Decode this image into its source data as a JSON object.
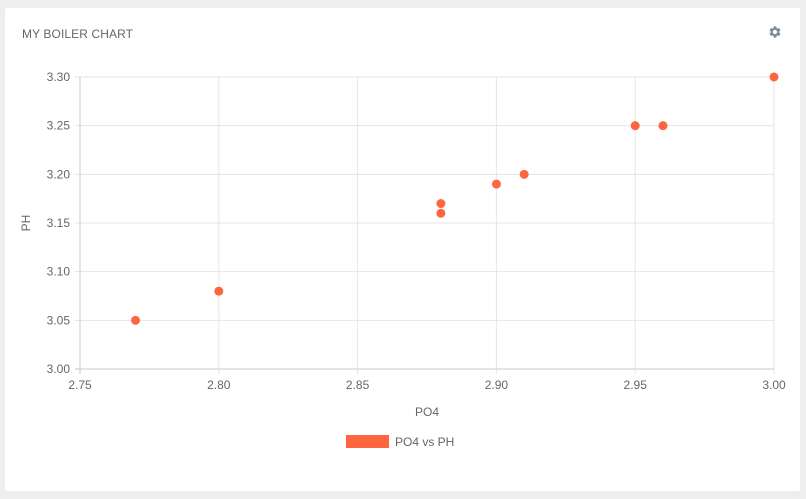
{
  "card": {
    "title": "MY BOILER CHART",
    "settings_icon": "gear-icon"
  },
  "colors": {
    "point": "#ff6640",
    "grid": "#e5e5e5",
    "axis": "#c8c8c8",
    "text": "#666666",
    "gear": "#7f8c9a"
  },
  "chart_data": {
    "type": "scatter",
    "xlabel": "PO4",
    "ylabel": "PH",
    "xlim": [
      2.75,
      3.0
    ],
    "ylim": [
      3.0,
      3.3
    ],
    "xticks": [
      "2.75",
      "2.80",
      "2.85",
      "2.90",
      "2.95",
      "3.00"
    ],
    "yticks": [
      "3.00",
      "3.05",
      "3.10",
      "3.15",
      "3.20",
      "3.25",
      "3.30"
    ],
    "grid": true,
    "legend_position": "bottom",
    "series": [
      {
        "name": "PO4 vs PH",
        "color": "#ff6640",
        "points": [
          {
            "x": 2.77,
            "y": 3.05
          },
          {
            "x": 2.8,
            "y": 3.08
          },
          {
            "x": 2.88,
            "y": 3.17
          },
          {
            "x": 2.88,
            "y": 3.16
          },
          {
            "x": 2.9,
            "y": 3.19
          },
          {
            "x": 2.91,
            "y": 3.2
          },
          {
            "x": 2.95,
            "y": 3.25
          },
          {
            "x": 2.96,
            "y": 3.25
          },
          {
            "x": 3.0,
            "y": 3.3
          }
        ]
      }
    ]
  }
}
